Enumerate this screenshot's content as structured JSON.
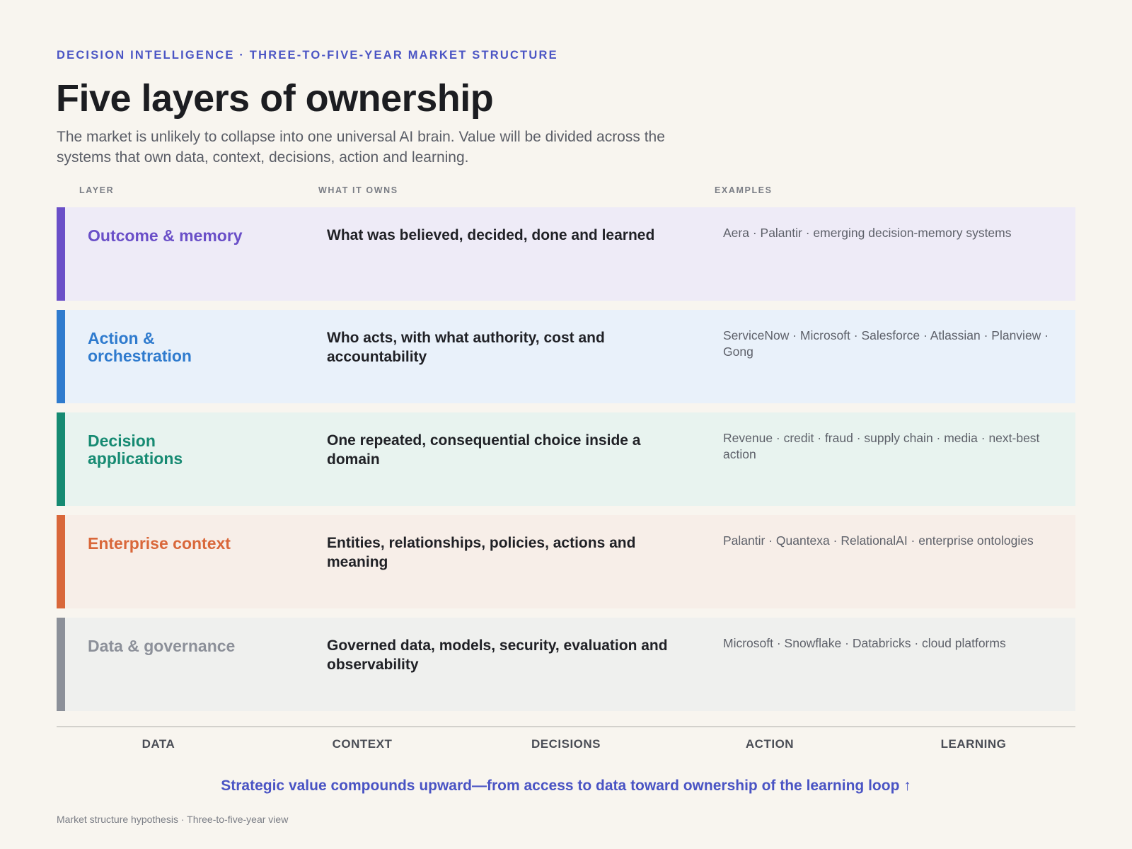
{
  "header": {
    "eyebrow": "DECISION INTELLIGENCE · THREE-TO-FIVE-YEAR MARKET STRUCTURE",
    "title": "Five layers of ownership",
    "subtitle": "The market is unlikely to collapse into one universal AI brain. Value will be divided across the systems that own data, context, decisions, action and learning."
  },
  "columns": {
    "layer": "LAYER",
    "owns": "WHAT IT OWNS",
    "examples": "EXAMPLES"
  },
  "layers": [
    {
      "name": "Outcome & memory",
      "owns": "What was believed, decided, done and learned",
      "examples": "Aera · Palantir · emerging decision-memory systems",
      "accent": "#6a4fc8",
      "background": "#eeebf7"
    },
    {
      "name": "Action & orchestration",
      "owns": "Who acts, with what authority, cost and accountability",
      "examples": "ServiceNow · Microsoft · Salesforce · Atlassian · Planview · Gong",
      "accent": "#2f7bce",
      "background": "#e9f1fa"
    },
    {
      "name": "Decision applications",
      "owns": "One repeated, consequential choice inside a domain",
      "examples": "Revenue · credit · fraud · supply chain · media · next-best action",
      "accent": "#168a72",
      "background": "#e8f3ef"
    },
    {
      "name": "Enterprise context",
      "owns": "Entities, relationships, policies, actions and meaning",
      "examples": "Palantir · Quantexa · RelationalAI · enterprise ontologies",
      "accent": "#d9673a",
      "background": "#f7eee8"
    },
    {
      "name": "Data & governance",
      "owns": "Governed data, models, security, evaluation and observability",
      "examples": "Microsoft · Snowflake · Databricks · cloud platforms",
      "accent": "#8c9099",
      "background": "#eff0ee"
    }
  ],
  "axis": [
    "DATA",
    "CONTEXT",
    "DECISIONS",
    "ACTION",
    "LEARNING"
  ],
  "callout": "Strategic value compounds upward—from access to data toward ownership of the learning loop ↑",
  "footer": "Market structure hypothesis · Three-to-five-year view"
}
